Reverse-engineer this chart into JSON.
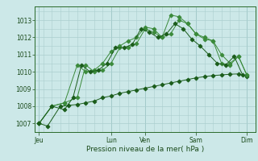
{
  "xlabel": "Pression niveau de la mer( hPa )",
  "background_color": "#cce8e8",
  "grid_color": "#aacece",
  "ylim": [
    1006.5,
    1013.8
  ],
  "xlim": [
    0,
    26
  ],
  "xtick_labels": [
    "Jeu",
    "Lun",
    "Ven",
    "Sam",
    "Dim"
  ],
  "xtick_positions": [
    0.5,
    9,
    13,
    19,
    25
  ],
  "ytick_vals": [
    1007,
    1008,
    1009,
    1010,
    1011,
    1012,
    1013
  ],
  "vline_positions": [
    0.5,
    9,
    13,
    19,
    25
  ],
  "line_dark": "#1a5c1a",
  "line_mid": "#3a8a3a",
  "s1_x": [
    0.5,
    1.5,
    3,
    4,
    5,
    6,
    7,
    8,
    9,
    10,
    11,
    12,
    13,
    14,
    15,
    16,
    17,
    18,
    19,
    20,
    21,
    22,
    23,
    24,
    25
  ],
  "s1_y": [
    1007.0,
    1006.85,
    1008.0,
    1008.05,
    1008.1,
    1008.2,
    1008.3,
    1008.5,
    1008.6,
    1008.75,
    1008.85,
    1008.95,
    1009.05,
    1009.15,
    1009.25,
    1009.35,
    1009.45,
    1009.55,
    1009.65,
    1009.72,
    1009.78,
    1009.82,
    1009.86,
    1009.88,
    1009.75
  ],
  "s2_x": [
    0.5,
    2,
    3.5,
    5,
    6,
    7,
    8,
    9,
    10,
    11,
    12,
    13,
    14,
    15,
    16,
    17,
    18,
    19,
    20,
    21,
    22,
    23,
    24,
    25
  ],
  "s2_y": [
    1007.0,
    1008.0,
    1008.2,
    1008.5,
    1010.4,
    1010.0,
    1010.1,
    1010.5,
    1011.4,
    1011.4,
    1011.65,
    1012.5,
    1012.3,
    1012.0,
    1012.2,
    1013.0,
    1012.8,
    1012.2,
    1012.0,
    1011.8,
    1011.0,
    1010.5,
    1010.9,
    1009.8
  ],
  "s3_x": [
    0.5,
    2,
    3.5,
    5,
    6,
    7,
    8,
    9,
    10,
    11,
    12,
    13,
    14,
    15,
    16,
    17,
    18,
    19,
    20,
    21,
    22,
    23,
    24,
    25
  ],
  "s3_y": [
    1007.0,
    1008.0,
    1008.2,
    1010.4,
    1010.0,
    1010.1,
    1010.5,
    1011.2,
    1011.5,
    1011.8,
    1012.0,
    1012.6,
    1012.5,
    1012.0,
    1013.3,
    1013.2,
    1012.8,
    1012.2,
    1011.9,
    1011.8,
    1010.5,
    1010.4,
    1010.9,
    1009.8
  ],
  "s4_x": [
    0.5,
    2,
    3.5,
    4.5,
    5.5,
    6.5,
    7.5,
    8.5,
    9.5,
    10.5,
    11.5,
    12.5,
    13.5,
    14.5,
    15.5,
    16.5,
    17.5,
    18.5,
    19.5,
    20.5,
    21.5,
    22.5,
    23.5,
    24.5
  ],
  "s4_y": [
    1007.0,
    1008.0,
    1007.8,
    1008.5,
    1010.4,
    1010.0,
    1010.1,
    1010.5,
    1011.4,
    1011.4,
    1011.6,
    1012.5,
    1012.3,
    1012.0,
    1012.2,
    1012.8,
    1012.5,
    1011.9,
    1011.5,
    1011.0,
    1010.5,
    1010.4,
    1010.9,
    1009.8
  ]
}
